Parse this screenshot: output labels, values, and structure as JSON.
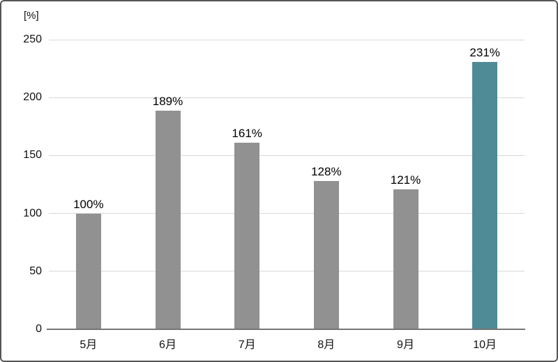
{
  "chart_data": {
    "type": "bar",
    "title": "",
    "unit_label": "[%]",
    "categories": [
      "5月",
      "6月",
      "7月",
      "8月",
      "9月",
      "10月"
    ],
    "values": [
      100,
      189,
      161,
      128,
      121,
      231
    ],
    "value_labels": [
      "100%",
      "189%",
      "161%",
      "128%",
      "121%",
      "231%"
    ],
    "ylim": [
      0,
      250
    ],
    "yticks": [
      0,
      50,
      100,
      150,
      200,
      250
    ],
    "grid": true,
    "legend": "none",
    "colors": {
      "bar_default": "#919191",
      "bar_highlight": "#4E8B96",
      "gridline": "#D8D8D8",
      "axis_line": "#757575",
      "text": "#111111"
    },
    "highlight_index": 5
  }
}
